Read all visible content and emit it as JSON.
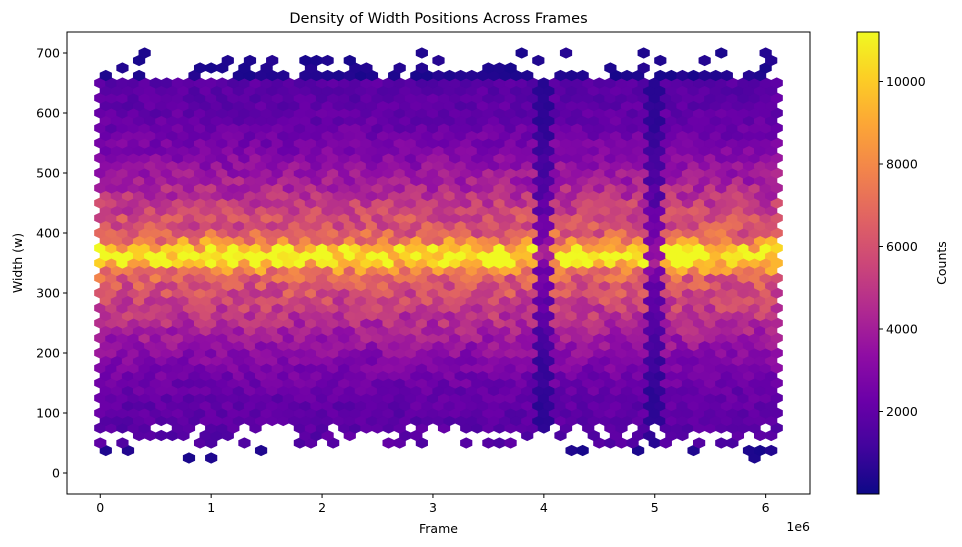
{
  "chart_data": {
    "type": "heatmap",
    "subtype": "hexbin",
    "title": "Density of Width Positions Across Frames",
    "xlabel": "Frame",
    "ylabel": "Width (w)",
    "x_offset_text": "1e6",
    "colorbar_label": "Counts",
    "colormap": "plasma",
    "xlim": [
      -300000,
      6400000
    ],
    "ylim": [
      -35,
      735
    ],
    "x_ticks": [
      0,
      1000000,
      2000000,
      3000000,
      4000000,
      5000000,
      6000000
    ],
    "x_tick_labels": [
      "0",
      "1",
      "2",
      "3",
      "4",
      "5",
      "6"
    ],
    "y_ticks": [
      0,
      100,
      200,
      300,
      400,
      500,
      600,
      700
    ],
    "y_tick_labels": [
      "0",
      "100",
      "200",
      "300",
      "400",
      "500",
      "600",
      "700"
    ],
    "colorbar_range": [
      0,
      11200
    ],
    "colorbar_ticks": [
      2000,
      4000,
      6000,
      8000,
      10000
    ],
    "colorbar_tick_labels": [
      "2000",
      "4000",
      "6000",
      "8000",
      "10000"
    ],
    "x_range": [
      0,
      6100000
    ],
    "hex_rows_y_step": 12.5,
    "density_profile": {
      "peak_width": 363,
      "peak_counts": 11000,
      "core_width_range": [
        300,
        400
      ],
      "dense_range": [
        80,
        650
      ],
      "sparse_range": [
        0,
        700
      ],
      "low_density_frames": [
        4000000,
        5000000
      ]
    },
    "grid": false,
    "legend": "none"
  }
}
